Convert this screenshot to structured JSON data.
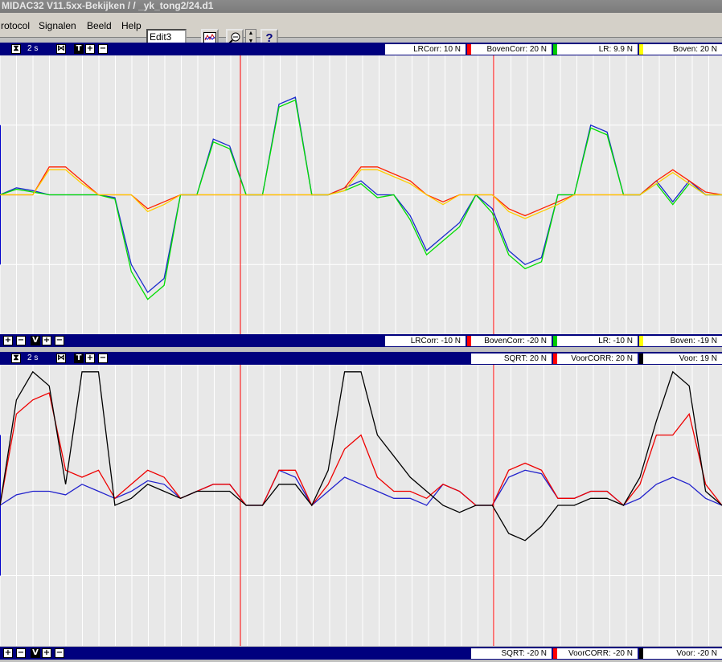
{
  "window": {
    "title": "MIDAC32 V11.5xx-Bekijken /  / _yk_tong2/24.d1"
  },
  "menu": {
    "items": [
      "rotocol",
      "Signalen",
      "Beeld",
      "Help"
    ]
  },
  "toolbar": {
    "edit_value": "Edit3",
    "help_glyph": "?"
  },
  "top_panel": {
    "time_label": "2 s",
    "icons": [
      "hourglass-icon",
      "collapse-icon",
      "t-icon",
      "zoom-in-icon",
      "zoom-out-icon"
    ],
    "max_labels": [
      {
        "text": "LRCorr: 10 N",
        "color": "#0000cc"
      },
      {
        "text": "BovenCorr: 20 N",
        "color": "#ff0000"
      },
      {
        "text": "LR: 9.9 N",
        "color": "#00cc00"
      },
      {
        "text": "Boven: 20 N",
        "color": "#ffff00"
      }
    ],
    "min_labels": [
      {
        "text": "LRCorr: -10 N"
      },
      {
        "text": "BovenCorr: -20 N"
      },
      {
        "text": "LR: -10 N"
      },
      {
        "text": "Boven: -19 N"
      }
    ]
  },
  "bottom_panel": {
    "time_label": "2 s",
    "max_labels": [
      {
        "text": "SQRT: 20 N",
        "color": "#0000cc"
      },
      {
        "text": "VoorCORR: 20 N",
        "color": "#ff0000"
      },
      {
        "text": "Voor: 19 N",
        "color": "#000000"
      }
    ],
    "min_labels": [
      {
        "text": "SQRT: -20 N"
      },
      {
        "text": "VoorCORR: -20 N"
      },
      {
        "text": "Voor: -20 N"
      }
    ]
  },
  "chart_data": [
    {
      "type": "line",
      "x": [
        0,
        1,
        2,
        3,
        4,
        5,
        6,
        7,
        8,
        9,
        10,
        11,
        12,
        13,
        14,
        15,
        16,
        17,
        18,
        19,
        20,
        21,
        22,
        23,
        24,
        25,
        26,
        27,
        28,
        29,
        30,
        31,
        32,
        33,
        34,
        35,
        36,
        37,
        38,
        39,
        40,
        41,
        42,
        43,
        44
      ],
      "xlabel": "",
      "ylabel": "",
      "ylim": [
        -10,
        10
      ],
      "series": [
        {
          "name": "LRCorr",
          "color": "#1a2bcc",
          "values": [
            0,
            0.5,
            0.3,
            0,
            0,
            0,
            0,
            -0.2,
            -5,
            -7,
            -6,
            0,
            0,
            4,
            3.5,
            0,
            0,
            6.5,
            7,
            0,
            0,
            0.5,
            1,
            0,
            0,
            -1.5,
            -4,
            -3,
            -2,
            0,
            -1,
            -4,
            -5,
            -4.5,
            0,
            0,
            5,
            4.5,
            0,
            0,
            1,
            -0.5,
            1,
            0,
            0
          ]
        },
        {
          "name": "BovenCorr",
          "color": "#ff2200",
          "values": [
            0,
            0,
            0,
            2,
            2,
            1,
            0,
            0,
            0,
            -1,
            -0.5,
            0,
            0,
            0,
            0,
            0,
            0,
            0,
            0,
            0,
            0,
            0.5,
            2,
            2,
            1.5,
            1,
            0,
            -0.5,
            0,
            0,
            0,
            -1,
            -1.5,
            -1,
            -0.5,
            0,
            0,
            0,
            0,
            0,
            1,
            1.8,
            1,
            0.2,
            0
          ]
        },
        {
          "name": "LR",
          "color": "#00dd00",
          "values": [
            0,
            0.4,
            0.2,
            0,
            0,
            0,
            0,
            -0.3,
            -5.5,
            -7.5,
            -6.5,
            0,
            0,
            3.8,
            3.3,
            0,
            0,
            6.3,
            6.8,
            0,
            0,
            0.3,
            0.8,
            -0.2,
            0,
            -1.8,
            -4.3,
            -3.3,
            -2.3,
            0,
            -1.3,
            -4.3,
            -5.3,
            -4.8,
            0,
            0,
            4.8,
            4.3,
            0,
            0,
            0.8,
            -0.7,
            0.8,
            0,
            0
          ]
        },
        {
          "name": "Boven",
          "color": "#ffcc00",
          "values": [
            0,
            0,
            0,
            1.8,
            1.8,
            0.8,
            0,
            0,
            0,
            -1.2,
            -0.7,
            0,
            0,
            0,
            0,
            0,
            0,
            0,
            0,
            0,
            0,
            0.3,
            1.8,
            1.8,
            1.3,
            0.8,
            0,
            -0.7,
            0,
            0,
            0,
            -1.2,
            -1.7,
            -1.2,
            -0.7,
            0,
            0,
            0,
            0,
            0,
            0.8,
            1.6,
            0.8,
            0,
            0
          ]
        }
      ]
    },
    {
      "type": "line",
      "x": [
        0,
        1,
        2,
        3,
        4,
        5,
        6,
        7,
        8,
        9,
        10,
        11,
        12,
        13,
        14,
        15,
        16,
        17,
        18,
        19,
        20,
        21,
        22,
        23,
        24,
        25,
        26,
        27,
        28,
        29,
        30,
        31,
        32,
        33,
        34,
        35,
        36,
        37,
        38,
        39,
        40,
        41,
        42,
        43,
        44
      ],
      "xlabel": "",
      "ylabel": "",
      "ylim": [
        -20,
        20
      ],
      "series": [
        {
          "name": "SQRT",
          "color": "#2222cc",
          "values": [
            0,
            1.5,
            2,
            2,
            1.5,
            3,
            2,
            1,
            2,
            3.5,
            3,
            1,
            2,
            3,
            3,
            0,
            0,
            5,
            4,
            0,
            2,
            4,
            3,
            2,
            1,
            1,
            0,
            3,
            2,
            0,
            0,
            4,
            5,
            4.5,
            1,
            1,
            2,
            2,
            0,
            1,
            3,
            4,
            3,
            1,
            0
          ]
        },
        {
          "name": "VoorCORR",
          "color": "#ee0000",
          "values": [
            0,
            13,
            15,
            16,
            5,
            4,
            5,
            1,
            3,
            5,
            4,
            1,
            2,
            3,
            3,
            0,
            0,
            5,
            5,
            0,
            3,
            8,
            10,
            4,
            2,
            2,
            1,
            3,
            2,
            0,
            0,
            5,
            6,
            5,
            1,
            1,
            2,
            2,
            0,
            3,
            10,
            10,
            13,
            3,
            0
          ]
        },
        {
          "name": "Voor",
          "color": "#000000",
          "values": [
            0,
            15,
            19,
            17,
            3,
            19,
            19,
            0,
            1,
            3,
            2,
            1,
            2,
            2,
            2,
            0,
            0,
            3,
            3,
            0,
            5,
            19,
            19,
            10,
            7,
            4,
            2,
            0,
            -1,
            0,
            0,
            -4,
            -5,
            -3,
            0,
            0,
            1,
            1,
            0,
            4,
            12,
            19,
            17,
            2,
            0
          ]
        }
      ]
    }
  ]
}
